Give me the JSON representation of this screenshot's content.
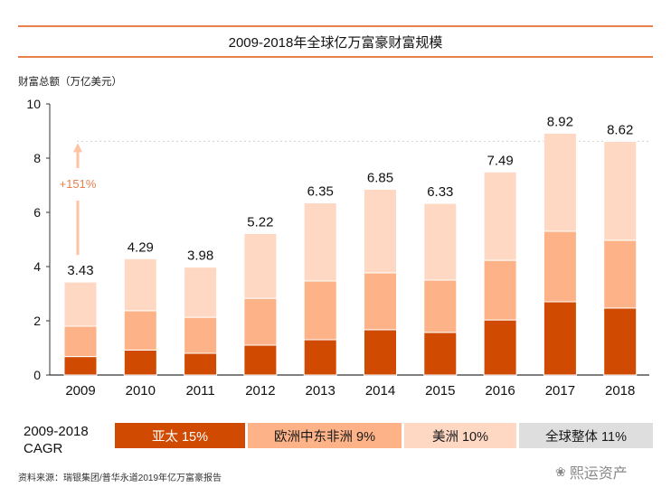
{
  "chart_data": {
    "type": "bar",
    "stacked": true,
    "title": "2009-2018年全球亿万富豪财富规模",
    "ylabel": "财富总额（万亿美元）",
    "xlabel": "",
    "ylim": [
      0,
      10
    ],
    "yticks": [
      0,
      2,
      4,
      6,
      8,
      10
    ],
    "categories": [
      "2009",
      "2010",
      "2011",
      "2012",
      "2013",
      "2014",
      "2015",
      "2016",
      "2017",
      "2018"
    ],
    "series": [
      {
        "name": "亚太",
        "color": "#d04a02",
        "values": [
          0.68,
          0.92,
          0.8,
          1.1,
          1.3,
          1.67,
          1.57,
          2.03,
          2.7,
          2.47
        ]
      },
      {
        "name": "欧洲中东非洲",
        "color": "#fdb287",
        "values": [
          1.12,
          1.45,
          1.33,
          1.73,
          2.17,
          2.1,
          1.93,
          2.2,
          2.6,
          2.5
        ]
      },
      {
        "name": "美洲",
        "color": "#fed8c3",
        "values": [
          1.63,
          1.92,
          1.85,
          2.39,
          2.88,
          3.08,
          2.83,
          3.26,
          3.62,
          3.65
        ]
      }
    ],
    "totals": [
      3.43,
      4.29,
      3.98,
      5.22,
      6.35,
      6.85,
      6.33,
      7.49,
      8.92,
      8.62
    ],
    "total_labels": [
      "3.43",
      "4.29",
      "3.98",
      "5.22",
      "6.35",
      "6.85",
      "6.33",
      "7.49",
      "8.92",
      "8.62"
    ],
    "annotation": {
      "text": "+151%",
      "from": 3.43,
      "to": 8.62,
      "color": "#e8804a"
    },
    "reference_line": {
      "value": 8.62,
      "style": "dotted"
    },
    "grid": false,
    "legend": "bottom"
  },
  "cagr": {
    "label_line1": "2009-2018",
    "label_line2": "CAGR",
    "items": [
      {
        "text": "亚太  15%",
        "bg": "#d04a02",
        "fg": "#ffffff"
      },
      {
        "text": "欧洲中东非洲  9%",
        "bg": "#fdb287",
        "fg": "#1a1a1a"
      },
      {
        "text": "美洲  10%",
        "bg": "#fed8c3",
        "fg": "#1a1a1a"
      },
      {
        "text": "全球整体  11%",
        "bg": "#dedede",
        "fg": "#1a1a1a"
      }
    ]
  },
  "source": "资料来源：瑞银集团/普华永道2019年亿万富豪报告",
  "watermark": "熙运资产"
}
